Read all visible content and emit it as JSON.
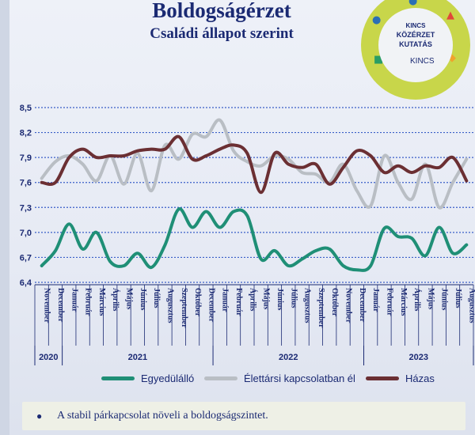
{
  "header": {
    "title": "Boldogságérzet",
    "subtitle": "Családi állapot szerint"
  },
  "logo": {
    "line1": "KINCS",
    "line2": "KÖZÉRZET",
    "line3": "KUTATÁS",
    "mark": "KINCS"
  },
  "chart_data": {
    "type": "line",
    "title": "Boldogságérzet",
    "subtitle": "Családi állapot szerint",
    "ylim": [
      6.4,
      8.5
    ],
    "yticks": [
      "8,5",
      "8,2",
      "7,9",
      "7,6",
      "7,3",
      "7,0",
      "6,7",
      "6,4"
    ],
    "grid": "dashed horizontal",
    "categories": [
      "November",
      "December",
      "Január",
      "Február",
      "Március",
      "Április",
      "Május",
      "Június",
      "Július",
      "Augusztus",
      "Szeptember",
      "Október",
      "December",
      "Január",
      "Február",
      "Április",
      "Május",
      "Június",
      "Július",
      "Augusztus",
      "Szeptember",
      "Október",
      "November",
      "December",
      "Január",
      "Február",
      "Március",
      "Április",
      "Május",
      "Június",
      "Július",
      "Augusztus"
    ],
    "years": [
      {
        "label": "2020",
        "start": 0,
        "end": 1
      },
      {
        "label": "2021",
        "start": 2,
        "end": 12
      },
      {
        "label": "2022",
        "start": 13,
        "end": 23
      },
      {
        "label": "2023",
        "start": 24,
        "end": 31
      }
    ],
    "series": [
      {
        "name": "Egyedülálló",
        "color": "#1f8f76",
        "values": [
          6.6,
          6.78,
          7.1,
          6.8,
          7.0,
          6.65,
          6.6,
          6.75,
          6.58,
          6.85,
          7.28,
          7.06,
          7.25,
          7.06,
          7.25,
          7.2,
          6.68,
          6.78,
          6.6,
          6.68,
          6.78,
          6.8,
          6.6,
          6.55,
          6.6,
          7.05,
          6.95,
          6.93,
          6.72,
          7.06,
          6.75,
          6.85
        ]
      },
      {
        "name": "Élettársi kapcsolatban él",
        "color": "#b9bec4",
        "values": [
          7.65,
          7.85,
          7.92,
          7.82,
          7.62,
          7.92,
          7.58,
          7.95,
          7.5,
          8.05,
          7.88,
          8.18,
          8.15,
          8.35,
          7.98,
          7.85,
          7.8,
          7.92,
          7.88,
          7.72,
          7.7,
          7.6,
          7.82,
          7.5,
          7.32,
          7.92,
          7.6,
          7.4,
          7.82,
          7.3,
          7.6,
          7.88
        ]
      },
      {
        "name": "Házas",
        "color": "#6b2f33",
        "values": [
          7.6,
          7.6,
          7.9,
          8.0,
          7.9,
          7.92,
          7.92,
          7.98,
          8.0,
          8.0,
          8.15,
          7.88,
          7.92,
          8.0,
          8.05,
          7.95,
          7.48,
          7.95,
          7.82,
          7.78,
          7.82,
          7.58,
          7.78,
          7.98,
          7.92,
          7.72,
          7.8,
          7.72,
          7.8,
          7.78,
          7.9,
          7.62
        ]
      }
    ],
    "legend_position": "bottom"
  },
  "note": {
    "text": "A stabil párkapcsolat növeli a boldogságszintet."
  }
}
